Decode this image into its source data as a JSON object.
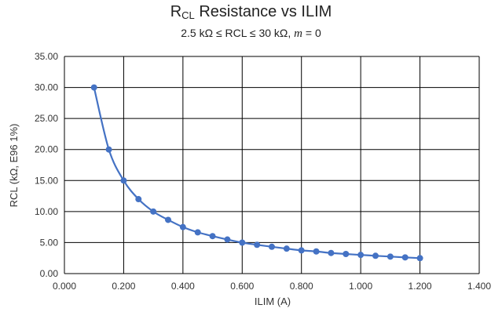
{
  "chart_data": {
    "type": "line",
    "title_main": "R",
    "title_sub": "CL",
    "title_rest": " Resistance vs ILIM",
    "subtitle_pre": "2.5 kΩ ≤ RCL ≤ 30 kΩ, ",
    "subtitle_var": "m",
    "subtitle_post": " = 0",
    "xlabel": "ILIM (A)",
    "ylabel": "RCL (kΩ, E96 1%)",
    "xlim": [
      0,
      1.4
    ],
    "ylim": [
      0,
      35
    ],
    "xticks": [
      "0.000",
      "0.200",
      "0.400",
      "0.600",
      "0.800",
      "1.000",
      "1.200",
      "1.400"
    ],
    "yticks": [
      "0.00",
      "5.00",
      "10.00",
      "15.00",
      "20.00",
      "25.00",
      "30.00",
      "35.00"
    ],
    "grid": true,
    "legend": "none",
    "color": "#4472C4",
    "series": [
      {
        "x": [
          0.1,
          0.15,
          0.2,
          0.25,
          0.3,
          0.35,
          0.4,
          0.45,
          0.5,
          0.55,
          0.6,
          0.65,
          0.7,
          0.75,
          0.8,
          0.85,
          0.9,
          0.95,
          1.0,
          1.05,
          1.1,
          1.15,
          1.2
        ],
        "values": [
          30.0,
          20.0,
          15.0,
          12.0,
          10.0,
          8.66,
          7.5,
          6.65,
          6.04,
          5.49,
          4.99,
          4.64,
          4.32,
          4.02,
          3.74,
          3.57,
          3.32,
          3.16,
          3.01,
          2.87,
          2.74,
          2.61,
          2.49
        ]
      }
    ]
  }
}
